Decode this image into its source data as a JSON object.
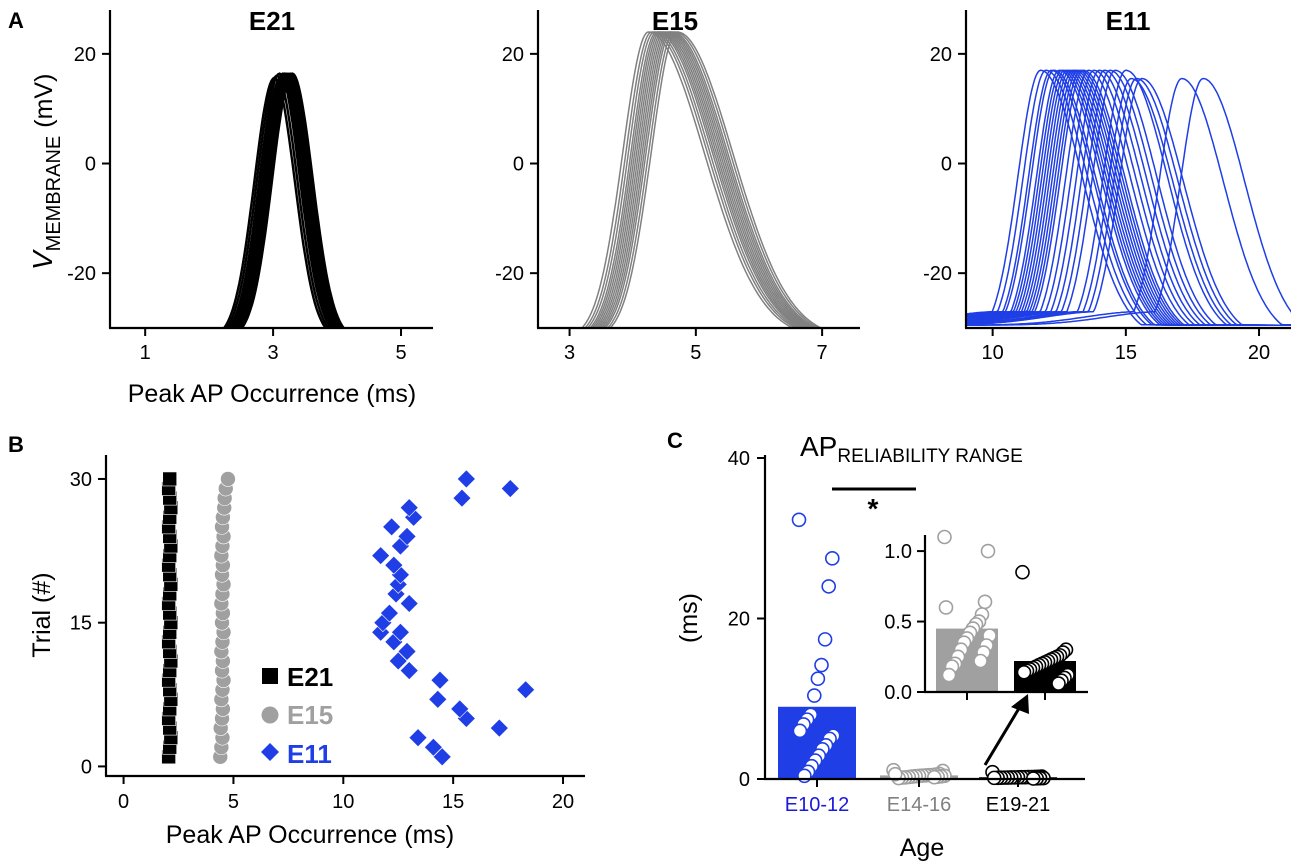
{
  "panel_labels": [
    "A",
    "B",
    "C"
  ],
  "chart_data": [
    {
      "id": "A1",
      "type": "line",
      "title": "E21",
      "title_color": "#000000",
      "trace_color": "#000000",
      "ylabel_main": "V",
      "ylabel_sub": "MEMBRANE",
      "ylabel_unit": "(mV)",
      "xlabel": "Peak AP Occurrence (ms)",
      "xlim": [
        0.45,
        5.5
      ],
      "ylim": [
        -30,
        28
      ],
      "xticks": [
        1,
        3,
        5
      ],
      "yticks": [
        20,
        0,
        -20
      ],
      "trace_peak_times_ms": [
        3.02,
        3.06,
        3.1,
        3.12,
        3.14,
        3.15,
        3.16,
        3.17,
        3.18,
        3.19,
        3.2,
        3.21,
        3.22,
        3.23,
        3.24,
        3.25,
        3.26,
        3.27,
        3.28,
        3.29,
        3.3
      ],
      "trace_peak_mV": 16,
      "trace_halfwidth_ms": [
        0.42,
        0.45
      ]
    },
    {
      "id": "A2",
      "type": "line",
      "title": "E15",
      "title_color": "#808080",
      "trace_color": "#808080",
      "xlim": [
        2.5,
        7.6
      ],
      "ylim": [
        -30,
        28
      ],
      "xticks": [
        3,
        5,
        7
      ],
      "yticks": [
        20,
        0,
        -20
      ],
      "trace_peak_times_ms": [
        4.25,
        4.3,
        4.34,
        4.38,
        4.41,
        4.44,
        4.47,
        4.5,
        4.53,
        4.56,
        4.59,
        4.62,
        4.66,
        4.7
      ],
      "trace_peak_mV": 24,
      "trace_halfwidth_ms": [
        0.55,
        1.25
      ]
    },
    {
      "id": "A3",
      "type": "line",
      "title": "E11",
      "title_color": "#1a1adb",
      "trace_color": "#1f3ee6",
      "xlim": [
        9,
        21.2
      ],
      "ylim": [
        -30,
        28
      ],
      "xticks": [
        10,
        15,
        20
      ],
      "yticks": [
        20,
        0,
        -20
      ],
      "trace_peak_times_ms": [
        11.8,
        12.0,
        12.2,
        12.3,
        12.5,
        12.6,
        12.7,
        12.8,
        12.9,
        13.0,
        13.1,
        13.2,
        13.3,
        13.4,
        13.6,
        13.8,
        14.0,
        14.2,
        14.4,
        14.6,
        15.0,
        15.2,
        15.4,
        15.6,
        17.1,
        17.9
      ],
      "trace_peak_mV": 17,
      "trace_halfwidth_ms": [
        1.2,
        2.2
      ]
    },
    {
      "id": "B",
      "type": "scatter",
      "xlabel": "Peak AP Occurrence (ms)",
      "ylabel": "Trial (#)",
      "xlim": [
        -0.8,
        21
      ],
      "ylim": [
        -1,
        32.5
      ],
      "xticks": [
        0,
        5,
        10,
        15,
        20
      ],
      "yticks": [
        0,
        15,
        30
      ],
      "series": [
        {
          "name": "E21",
          "marker": "square",
          "color": "#000000",
          "x": [
            2.05,
            2.1,
            2.15,
            2.1,
            2.05,
            2.1,
            2.15,
            2.1,
            2.05,
            2.1,
            2.15,
            2.1,
            2.05,
            2.1,
            2.15,
            2.1,
            2.05,
            2.1,
            2.15,
            2.1,
            2.05,
            2.1,
            2.15,
            2.1,
            2.05,
            2.1,
            2.15,
            2.1,
            2.05,
            2.1
          ],
          "y": [
            1,
            2,
            3,
            4,
            5,
            6,
            7,
            8,
            9,
            10,
            11,
            12,
            13,
            14,
            15,
            16,
            17,
            18,
            19,
            20,
            21,
            22,
            23,
            24,
            25,
            26,
            27,
            28,
            29,
            30
          ]
        },
        {
          "name": "E15",
          "marker": "circle",
          "color": "#a0a0a0",
          "x": [
            4.4,
            4.45,
            4.5,
            4.42,
            4.48,
            4.52,
            4.45,
            4.5,
            4.55,
            4.48,
            4.52,
            4.45,
            4.5,
            4.55,
            4.48,
            4.52,
            4.45,
            4.5,
            4.55,
            4.48,
            4.52,
            4.45,
            4.5,
            4.55,
            4.48,
            4.52,
            4.58,
            4.6,
            4.65,
            4.75
          ],
          "y": [
            1,
            2,
            3,
            4,
            5,
            6,
            7,
            8,
            9,
            10,
            11,
            12,
            13,
            14,
            15,
            16,
            17,
            18,
            19,
            20,
            21,
            22,
            23,
            24,
            25,
            26,
            27,
            28,
            29,
            30
          ]
        },
        {
          "name": "E11",
          "marker": "diamond",
          "color": "#1f3ee6",
          "x": [
            14.5,
            14.1,
            13.4,
            17.1,
            15.6,
            15.3,
            14.3,
            18.3,
            14.4,
            13.0,
            12.5,
            12.9,
            12.3,
            12.6,
            11.7,
            11.8,
            12.1,
            13.0,
            12.4,
            12.5,
            12.6,
            12.3,
            12.6,
            11.7,
            12.9,
            12.2,
            13.2,
            13.0,
            17.6,
            15.6,
            15.4
          ],
          "y": [
            1,
            2,
            3,
            4,
            5,
            6,
            7,
            8,
            9,
            10,
            11,
            12,
            13,
            14,
            14,
            15,
            16,
            17,
            18,
            19,
            20,
            21,
            23,
            22,
            24,
            25,
            26,
            27,
            29,
            30,
            28
          ]
        }
      ],
      "legend": [
        {
          "label": "E21",
          "color": "#000000",
          "marker": "square"
        },
        {
          "label": "E15",
          "color": "#a0a0a0",
          "marker": "circle"
        },
        {
          "label": "E11",
          "color": "#1f3ee6",
          "marker": "diamond"
        }
      ]
    },
    {
      "id": "C",
      "type": "bar",
      "title_main": "AP",
      "title_sub": "RELIABILITY RANGE",
      "ylabel": "(ms)",
      "xlabel": "Age",
      "categories": [
        "E10-12",
        "E14-16",
        "E19-21"
      ],
      "category_colors": [
        "#1a1adb",
        "#808080",
        "#000000"
      ],
      "values": [
        9.0,
        0.45,
        0.22
      ],
      "bar_colors": [
        "#1f3ee6",
        "#a0a0a0",
        "#000000"
      ],
      "ylim": [
        0,
        40
      ],
      "yticks": [
        0,
        20,
        40
      ],
      "significance": "*",
      "points": [
        [
          32.3,
          27.5,
          24.0,
          17.4,
          14.2,
          12.5,
          10.4,
          8.0,
          7.4,
          6.8,
          6.0,
          5.4,
          5.0,
          4.2,
          3.7,
          2.9,
          2.3,
          1.6,
          0.9,
          0.4
        ],
        [
          1.1,
          1.0,
          0.64,
          0.55,
          0.5,
          0.48,
          0.45,
          0.42,
          0.38,
          0.35,
          0.3,
          0.25,
          0.2,
          0.18,
          0.12,
          0.6,
          0.4,
          0.33,
          0.28,
          0.22
        ],
        [
          0.85,
          0.3,
          0.28,
          0.26,
          0.25,
          0.24,
          0.23,
          0.22,
          0.21,
          0.2,
          0.19,
          0.18,
          0.17,
          0.16,
          0.15,
          0.14,
          0.12,
          0.1,
          0.08,
          0.06
        ]
      ],
      "inset": {
        "categories": [
          "E14-16",
          "E19-21"
        ],
        "values": [
          0.45,
          0.22
        ],
        "bar_colors": [
          "#a0a0a0",
          "#000000"
        ],
        "ylim": [
          0,
          1.1
        ],
        "yticks": [
          0.0,
          0.5,
          1.0
        ],
        "ytick_labels": [
          "0.0",
          "0.5",
          "1.0"
        ]
      }
    }
  ]
}
